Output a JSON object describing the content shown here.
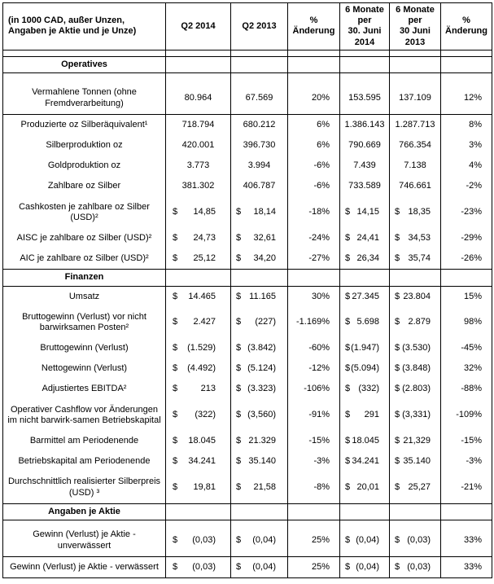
{
  "colors": {
    "border": "#000000",
    "text": "#000000",
    "background": "#ffffff"
  },
  "table": {
    "header": {
      "cells": [
        "(in 1000 CAD, außer Unzen,\nAngaben je Aktie und je Unze)",
        "Q2 2014",
        "Q2 2013",
        "%\nÄnderung",
        "6 Monate\nper\n30. Juni\n2014",
        "6 Monate\nper\n30 Juni\n2013",
        "%\nÄnderung"
      ]
    },
    "rows": [
      {
        "type": "spacer",
        "h": 8
      },
      {
        "type": "section",
        "label": "Operatives"
      },
      {
        "type": "spacer",
        "h": 12
      },
      {
        "type": "data",
        "label": "Vermahlene Tonnen (ohne Fremdverarbeitung)",
        "values": [
          "80.964",
          "67.569",
          "20%",
          "153.595",
          "137.109",
          "12%"
        ],
        "rule_below": true
      },
      {
        "type": "data",
        "label": "Produzierte oz Silberäquivalent¹",
        "values": [
          "718.794",
          "680.212",
          "6%",
          "1.386.143",
          "1.287.713",
          "8%"
        ]
      },
      {
        "type": "data",
        "label": "Silberproduktion oz",
        "values": [
          "420.001",
          "396.730",
          "6%",
          "790.669",
          "766.354",
          "3%"
        ]
      },
      {
        "type": "data",
        "label": "Goldproduktion oz",
        "values": [
          "3.773",
          "3.994",
          "-6%",
          "7.439",
          "7.138",
          "4%"
        ]
      },
      {
        "type": "data",
        "label": "Zahlbare oz Silber",
        "values": [
          "381.302",
          "406.787",
          "-6%",
          "733.589",
          "746.661",
          "-2%"
        ]
      },
      {
        "type": "data",
        "label": "Cashkosten je zahlbare oz Silber (USD)²",
        "values": [
          "$ 14,85",
          "$ 18,14",
          "-18%",
          "$ 14,15",
          "$ 18,35",
          "-23%"
        ]
      },
      {
        "type": "data",
        "label": "AISC je zahlbare oz Silber (USD)²",
        "values": [
          "$ 24,73",
          "$ 32,61",
          "-24%",
          "$ 24,41",
          "$ 34,53",
          "-29%"
        ]
      },
      {
        "type": "data",
        "label": "AIC je zahlbare oz Silber (USD)²",
        "values": [
          "$ 25,12",
          "$ 34,20",
          "-27%",
          "$ 26,34",
          "$ 35,74",
          "-26%"
        ]
      },
      {
        "type": "section",
        "label": "Finanzen"
      },
      {
        "type": "data",
        "label": "Umsatz",
        "values": [
          "$ 14.465",
          "$ 11.165",
          "30%",
          "$ 27.345",
          "$ 23.804",
          "15%"
        ]
      },
      {
        "type": "data",
        "label": "Bruttogewinn (Verlust) vor nicht barwirksamen Posten²",
        "values": [
          "$ 2.427",
          "$ (227)",
          "-1.169%",
          "$ 5.698",
          "$ 2.879",
          "98%"
        ]
      },
      {
        "type": "data",
        "label": "Bruttogewinn (Verlust)",
        "values": [
          "$ (1.529)",
          "$ (3.842)",
          "-60%",
          "$ (1.947)",
          "$ (3.530)",
          "-45%"
        ]
      },
      {
        "type": "data",
        "label": "Nettogewinn (Verlust)",
        "values": [
          "$ (4.492)",
          "$ (5.124)",
          "-12%",
          "$ (5.094)",
          "$ (3.848)",
          "32%"
        ]
      },
      {
        "type": "data",
        "label": "Adjustiertes EBITDA²",
        "values": [
          "$ 213",
          "$ (3.323)",
          "-106%",
          "$ (332)",
          "$ (2.803)",
          "-88%"
        ]
      },
      {
        "type": "data",
        "label": "Operativer Cashflow vor Änderungen im nicht barwirk-samen Betriebskapital",
        "values": [
          "$ (322)",
          "$ (3,560)",
          "-91%",
          "$ 291",
          "$ (3,331)",
          "-109%"
        ]
      },
      {
        "type": "data",
        "label": "Barmittel am Periodenende",
        "values": [
          "$ 18.045",
          "$ 21.329",
          "-15%",
          "$ 18.045",
          "$ 21,329",
          "-15%"
        ]
      },
      {
        "type": "data",
        "label": "Betriebskapital am Periodenende",
        "values": [
          "$ 34.241",
          "$ 35.140",
          "-3%",
          "$ 34.241",
          "$ 35.140",
          "-3%"
        ]
      },
      {
        "type": "data",
        "label": "Durchschnittlich realisierter Silberpreis (USD) ³",
        "values": [
          "$ 19,81",
          "$ 21,58",
          "-8%",
          "$ 20,01",
          "$ 25,27",
          "-21%"
        ]
      },
      {
        "type": "section",
        "label": "Angaben je Aktie"
      },
      {
        "type": "spacer",
        "h": 6
      },
      {
        "type": "data",
        "label": "Gewinn (Verlust) je Aktie - unverwässert",
        "values": [
          "$ (0,03)",
          "$ (0,04)",
          "25%",
          "$ (0,04)",
          "$ (0,03)",
          "33%"
        ],
        "rule_below": true
      },
      {
        "type": "data",
        "label": "Gewinn (Verlust) je Aktie - verwässert",
        "values": [
          "$ (0,03)",
          "$ (0,04)",
          "25%",
          "$ (0,04)",
          "$ (0,03)",
          "33%"
        ]
      }
    ]
  }
}
